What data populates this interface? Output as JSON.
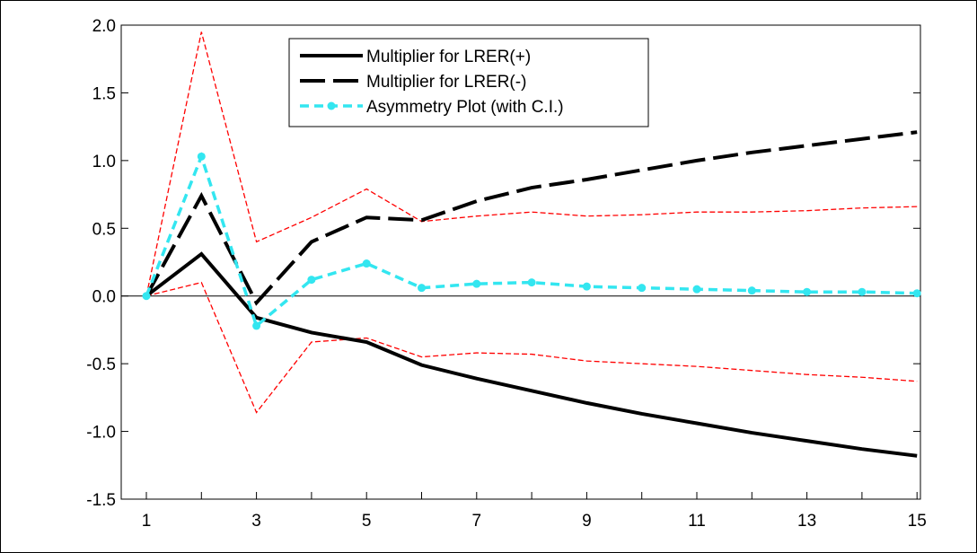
{
  "chart_data": {
    "type": "line",
    "title": "",
    "xlabel": "",
    "ylabel": "",
    "x": [
      1,
      2,
      3,
      4,
      5,
      6,
      7,
      8,
      9,
      10,
      11,
      12,
      13,
      14,
      15
    ],
    "xticks": [
      "1",
      "3",
      "5",
      "7",
      "9",
      "11",
      "13",
      "15"
    ],
    "ylim": [
      -1.5,
      2.0
    ],
    "yticks": [
      "-1.5",
      "-1.0",
      "-0.5",
      "0.0",
      "0.5",
      "1.0",
      "1.5",
      "2.0"
    ],
    "yticks_values": [
      -1.5,
      -1.0,
      -0.5,
      0.0,
      0.5,
      1.0,
      1.5,
      2.0
    ],
    "zero_line": true,
    "grid": false,
    "legend_position": "top-center",
    "series": [
      {
        "name": "Multiplier for LRER(+)",
        "style": "solid",
        "color": "#000000",
        "values": [
          0.0,
          0.31,
          -0.16,
          -0.27,
          -0.34,
          -0.51,
          -0.61,
          -0.7,
          -0.79,
          -0.87,
          -0.94,
          -1.01,
          -1.07,
          -1.13,
          -1.18
        ]
      },
      {
        "name": "Multiplier for LRER(-)",
        "style": "long-dash",
        "color": "#000000",
        "values": [
          0.0,
          0.74,
          -0.05,
          0.4,
          0.58,
          0.56,
          0.7,
          0.8,
          0.86,
          0.93,
          1.0,
          1.06,
          1.11,
          1.16,
          1.21
        ]
      },
      {
        "name": "Asymmetry Plot (with C.I.)",
        "style": "short-dash-dots",
        "color": "#33e6f0",
        "values": [
          0.0,
          1.03,
          -0.22,
          0.12,
          0.24,
          0.06,
          0.09,
          0.1,
          0.07,
          0.06,
          0.05,
          0.04,
          0.03,
          0.03,
          0.02
        ]
      },
      {
        "name": "",
        "style": "thin-dash",
        "color": "#ff0000",
        "values": [
          0.0,
          1.95,
          0.4,
          0.58,
          0.79,
          0.55,
          0.59,
          0.62,
          0.59,
          0.6,
          0.62,
          0.62,
          0.63,
          0.65,
          0.66
        ]
      },
      {
        "name": "",
        "style": "thin-dash",
        "color": "#ff0000",
        "values": [
          0.0,
          0.1,
          -0.86,
          -0.34,
          -0.31,
          -0.45,
          -0.42,
          -0.43,
          -0.48,
          -0.5,
          -0.52,
          -0.55,
          -0.58,
          -0.6,
          -0.63
        ]
      }
    ]
  }
}
